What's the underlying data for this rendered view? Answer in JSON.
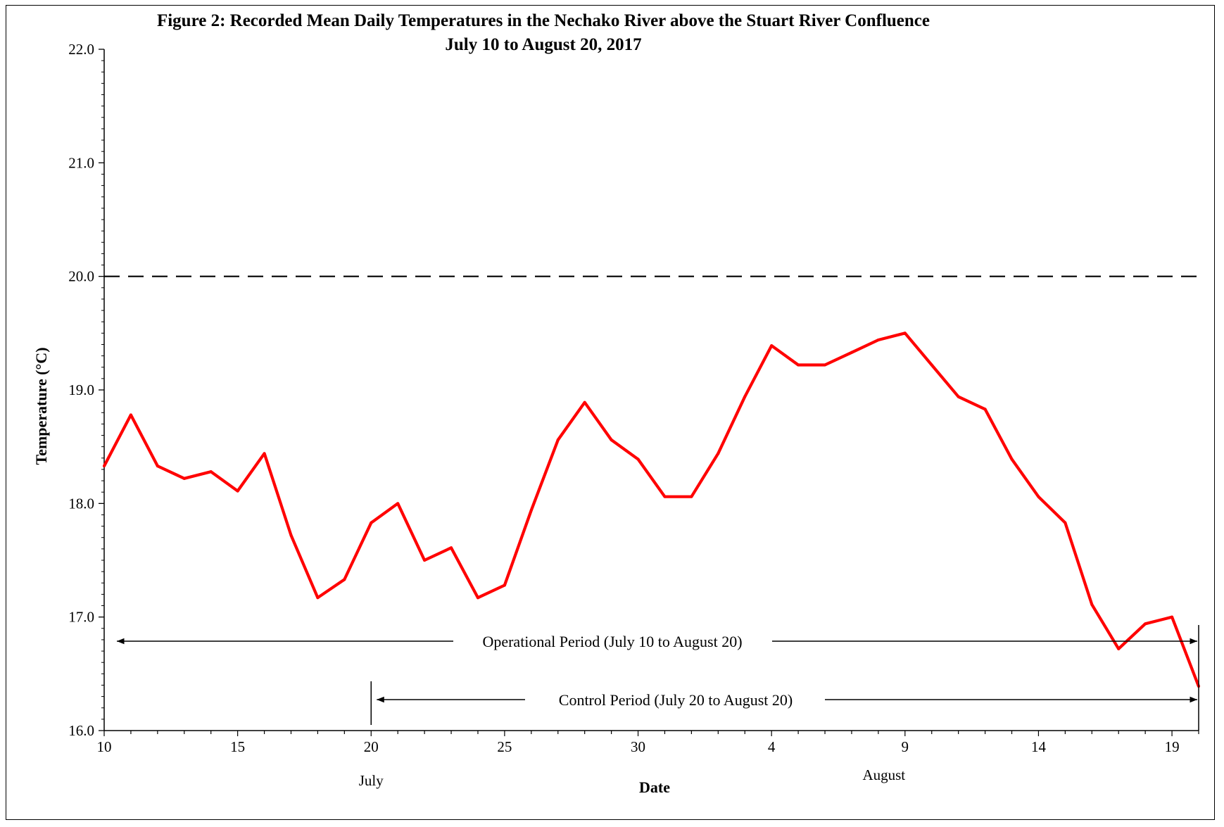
{
  "chart_data": {
    "type": "line",
    "title": "Figure 2: Recorded Mean Daily Temperatures in the Nechako River above the Stuart River Confluence",
    "subtitle": "July 10 to August 20, 2017",
    "xlabel": "Date",
    "ylabel": "Temperature (°C)",
    "ylim": [
      16.0,
      22.0
    ],
    "y_ticks": [
      "16.0",
      "17.0",
      "18.0",
      "19.0",
      "20.0",
      "21.0",
      "22.0"
    ],
    "x_tick_labels": [
      "10",
      "15",
      "20",
      "25",
      "30",
      "4",
      "9",
      "14",
      "19"
    ],
    "month_labels": [
      "July",
      "August"
    ],
    "threshold": {
      "value": 20.0,
      "style": "dashed"
    },
    "series": [
      {
        "color": "#ff0000",
        "x": [
          "2017-07-10",
          "2017-07-11",
          "2017-07-12",
          "2017-07-13",
          "2017-07-14",
          "2017-07-15",
          "2017-07-16",
          "2017-07-17",
          "2017-07-18",
          "2017-07-19",
          "2017-07-20",
          "2017-07-21",
          "2017-07-22",
          "2017-07-23",
          "2017-07-24",
          "2017-07-25",
          "2017-07-26",
          "2017-07-27",
          "2017-07-28",
          "2017-07-29",
          "2017-07-30",
          "2017-07-31",
          "2017-08-01",
          "2017-08-02",
          "2017-08-03",
          "2017-08-04",
          "2017-08-05",
          "2017-08-06",
          "2017-08-07",
          "2017-08-08",
          "2017-08-09",
          "2017-08-10",
          "2017-08-11",
          "2017-08-12",
          "2017-08-13",
          "2017-08-14",
          "2017-08-15",
          "2017-08-16",
          "2017-08-17",
          "2017-08-18",
          "2017-08-19",
          "2017-08-20"
        ],
        "values": [
          18.33,
          18.78,
          18.33,
          18.22,
          18.28,
          18.11,
          18.44,
          17.72,
          17.17,
          17.33,
          17.83,
          18.0,
          17.5,
          17.61,
          17.17,
          17.28,
          17.94,
          18.56,
          18.89,
          18.56,
          18.39,
          18.06,
          18.06,
          18.44,
          18.94,
          19.39,
          19.22,
          19.22,
          19.33,
          19.44,
          19.5,
          19.22,
          18.94,
          18.83,
          18.39,
          18.06,
          17.83,
          17.11,
          16.72,
          16.94,
          17.0,
          16.39
        ]
      }
    ],
    "annotations": [
      {
        "text": "Operational Period (July 10 to August 20)",
        "start": "2017-07-10",
        "end": "2017-08-20"
      },
      {
        "text": "Control Period (July 20 to August 20)",
        "start": "2017-07-20",
        "end": "2017-08-20"
      }
    ]
  }
}
